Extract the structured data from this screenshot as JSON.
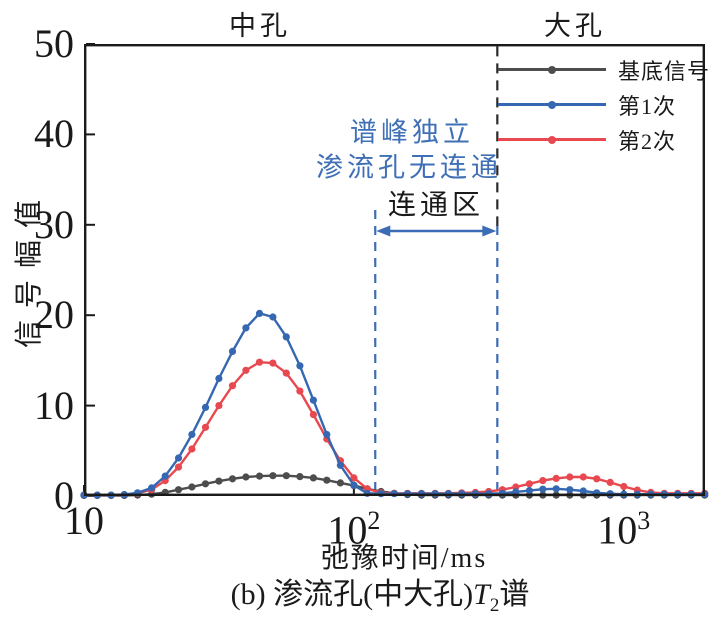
{
  "figure": {
    "region_labels": {
      "left": "中孔",
      "right": "大孔"
    },
    "annotations": {
      "line1": "谱峰独立",
      "line2": "渗流孔无连通",
      "zone_label": "连通区"
    },
    "caption": {
      "prefix": "(b) 渗流孔(中大孔)",
      "var": "T",
      "sub": "2",
      "suffix": "谱"
    }
  },
  "chart_data": {
    "type": "line",
    "x_axis": {
      "label": "弛豫时间/ms",
      "scale": "log",
      "min": 10,
      "max": 2000,
      "ticks": [
        {
          "t": 10,
          "base": "10",
          "sup": ""
        },
        {
          "t": 100,
          "base": "10",
          "sup": "2"
        },
        {
          "t": 1000,
          "base": "10",
          "sup": "3"
        }
      ]
    },
    "y_axis": {
      "label": "信号幅值",
      "min": 0,
      "max": 50,
      "ticks": [
        0,
        10,
        20,
        30,
        40,
        50
      ]
    },
    "boundary_ms": 340,
    "connected_zone": {
      "from_ms": 120,
      "to_ms": 340
    },
    "colors": {
      "axis": "#1a1a1a",
      "accent_blue": "#3b6cb5",
      "dashed_black": "#2b2b2b"
    },
    "series": [
      {
        "name": "基底信号",
        "color": "#4d4d4d",
        "points": [
          [
            10,
            0.05
          ],
          [
            11.2,
            0.05
          ],
          [
            12.6,
            0.05
          ],
          [
            14.1,
            0.05
          ],
          [
            15.8,
            0.1
          ],
          [
            17.8,
            0.2
          ],
          [
            20,
            0.4
          ],
          [
            22.4,
            0.7
          ],
          [
            25.1,
            1.0
          ],
          [
            28.2,
            1.35
          ],
          [
            31.6,
            1.65
          ],
          [
            35.5,
            1.9
          ],
          [
            39.8,
            2.1
          ],
          [
            44.7,
            2.2
          ],
          [
            50.1,
            2.25
          ],
          [
            56.2,
            2.25
          ],
          [
            63.1,
            2.15
          ],
          [
            70.8,
            2.0
          ],
          [
            79.4,
            1.75
          ],
          [
            89.1,
            1.45
          ],
          [
            100,
            1.15
          ],
          [
            112,
            0.8
          ],
          [
            126,
            0.5
          ],
          [
            141,
            0.3
          ],
          [
            158,
            0.15
          ],
          [
            178,
            0.1
          ],
          [
            200,
            0.1
          ],
          [
            224,
            0.1
          ],
          [
            251,
            0.1
          ],
          [
            282,
            0.1
          ],
          [
            316,
            0.1
          ],
          [
            355,
            0.1
          ],
          [
            398,
            0.1
          ],
          [
            447,
            0.1
          ],
          [
            501,
            0.1
          ],
          [
            562,
            0.1
          ],
          [
            631,
            0.1
          ],
          [
            708,
            0.1
          ],
          [
            794,
            0.1
          ],
          [
            891,
            0.1
          ],
          [
            1000,
            0.1
          ],
          [
            1122,
            0.1
          ],
          [
            1259,
            0.1
          ],
          [
            1413,
            0.1
          ],
          [
            1585,
            0.1
          ],
          [
            1778,
            0.1
          ],
          [
            1995,
            0.1
          ]
        ]
      },
      {
        "name": "第1次",
        "color": "#3568b0",
        "points": [
          [
            10,
            0.1
          ],
          [
            11.2,
            0.1
          ],
          [
            12.6,
            0.1
          ],
          [
            14.1,
            0.15
          ],
          [
            15.8,
            0.35
          ],
          [
            17.8,
            0.9
          ],
          [
            20,
            2.2
          ],
          [
            22.4,
            4.2
          ],
          [
            25.1,
            6.8
          ],
          [
            28.2,
            9.8
          ],
          [
            31.6,
            13.0
          ],
          [
            35.5,
            16.0
          ],
          [
            39.8,
            18.6
          ],
          [
            44.7,
            20.2
          ],
          [
            50.1,
            19.8
          ],
          [
            56.2,
            17.6
          ],
          [
            63.1,
            14.4
          ],
          [
            70.8,
            10.6
          ],
          [
            79.4,
            6.8
          ],
          [
            89.1,
            3.4
          ],
          [
            100,
            1.2
          ],
          [
            112,
            0.3
          ],
          [
            126,
            0.25
          ],
          [
            141,
            0.25
          ],
          [
            158,
            0.25
          ],
          [
            178,
            0.25
          ],
          [
            200,
            0.25
          ],
          [
            224,
            0.25
          ],
          [
            251,
            0.25
          ],
          [
            282,
            0.25
          ],
          [
            316,
            0.25
          ],
          [
            355,
            0.3
          ],
          [
            398,
            0.45
          ],
          [
            447,
            0.6
          ],
          [
            501,
            0.75
          ],
          [
            562,
            0.8
          ],
          [
            631,
            0.7
          ],
          [
            708,
            0.55
          ],
          [
            794,
            0.35
          ],
          [
            891,
            0.25
          ],
          [
            1000,
            0.2
          ],
          [
            1122,
            0.2
          ],
          [
            1259,
            0.2
          ],
          [
            1413,
            0.2
          ],
          [
            1585,
            0.2
          ],
          [
            1778,
            0.2
          ],
          [
            1995,
            0.2
          ]
        ]
      },
      {
        "name": "第2次",
        "color": "#e8484f",
        "points": [
          [
            10,
            0.1
          ],
          [
            11.2,
            0.1
          ],
          [
            12.6,
            0.1
          ],
          [
            14.1,
            0.15
          ],
          [
            15.8,
            0.3
          ],
          [
            17.8,
            0.7
          ],
          [
            20,
            1.7
          ],
          [
            22.4,
            3.2
          ],
          [
            25.1,
            5.2
          ],
          [
            28.2,
            7.6
          ],
          [
            31.6,
            10.0
          ],
          [
            35.5,
            12.2
          ],
          [
            39.8,
            13.9
          ],
          [
            44.7,
            14.8
          ],
          [
            50.1,
            14.7
          ],
          [
            56.2,
            13.6
          ],
          [
            63.1,
            11.6
          ],
          [
            70.8,
            9.0
          ],
          [
            79.4,
            6.3
          ],
          [
            89.1,
            3.9
          ],
          [
            100,
            2.0
          ],
          [
            112,
            0.8
          ],
          [
            126,
            0.35
          ],
          [
            141,
            0.3
          ],
          [
            158,
            0.3
          ],
          [
            178,
            0.3
          ],
          [
            200,
            0.3
          ],
          [
            224,
            0.3
          ],
          [
            251,
            0.35
          ],
          [
            282,
            0.4
          ],
          [
            316,
            0.5
          ],
          [
            355,
            0.7
          ],
          [
            398,
            1.0
          ],
          [
            447,
            1.35
          ],
          [
            501,
            1.7
          ],
          [
            562,
            1.95
          ],
          [
            631,
            2.1
          ],
          [
            708,
            2.1
          ],
          [
            794,
            1.9
          ],
          [
            891,
            1.5
          ],
          [
            1000,
            1.05
          ],
          [
            1122,
            0.65
          ],
          [
            1259,
            0.4
          ],
          [
            1413,
            0.3
          ],
          [
            1585,
            0.3
          ],
          [
            1778,
            0.3
          ],
          [
            1995,
            0.3
          ]
        ]
      }
    ]
  }
}
